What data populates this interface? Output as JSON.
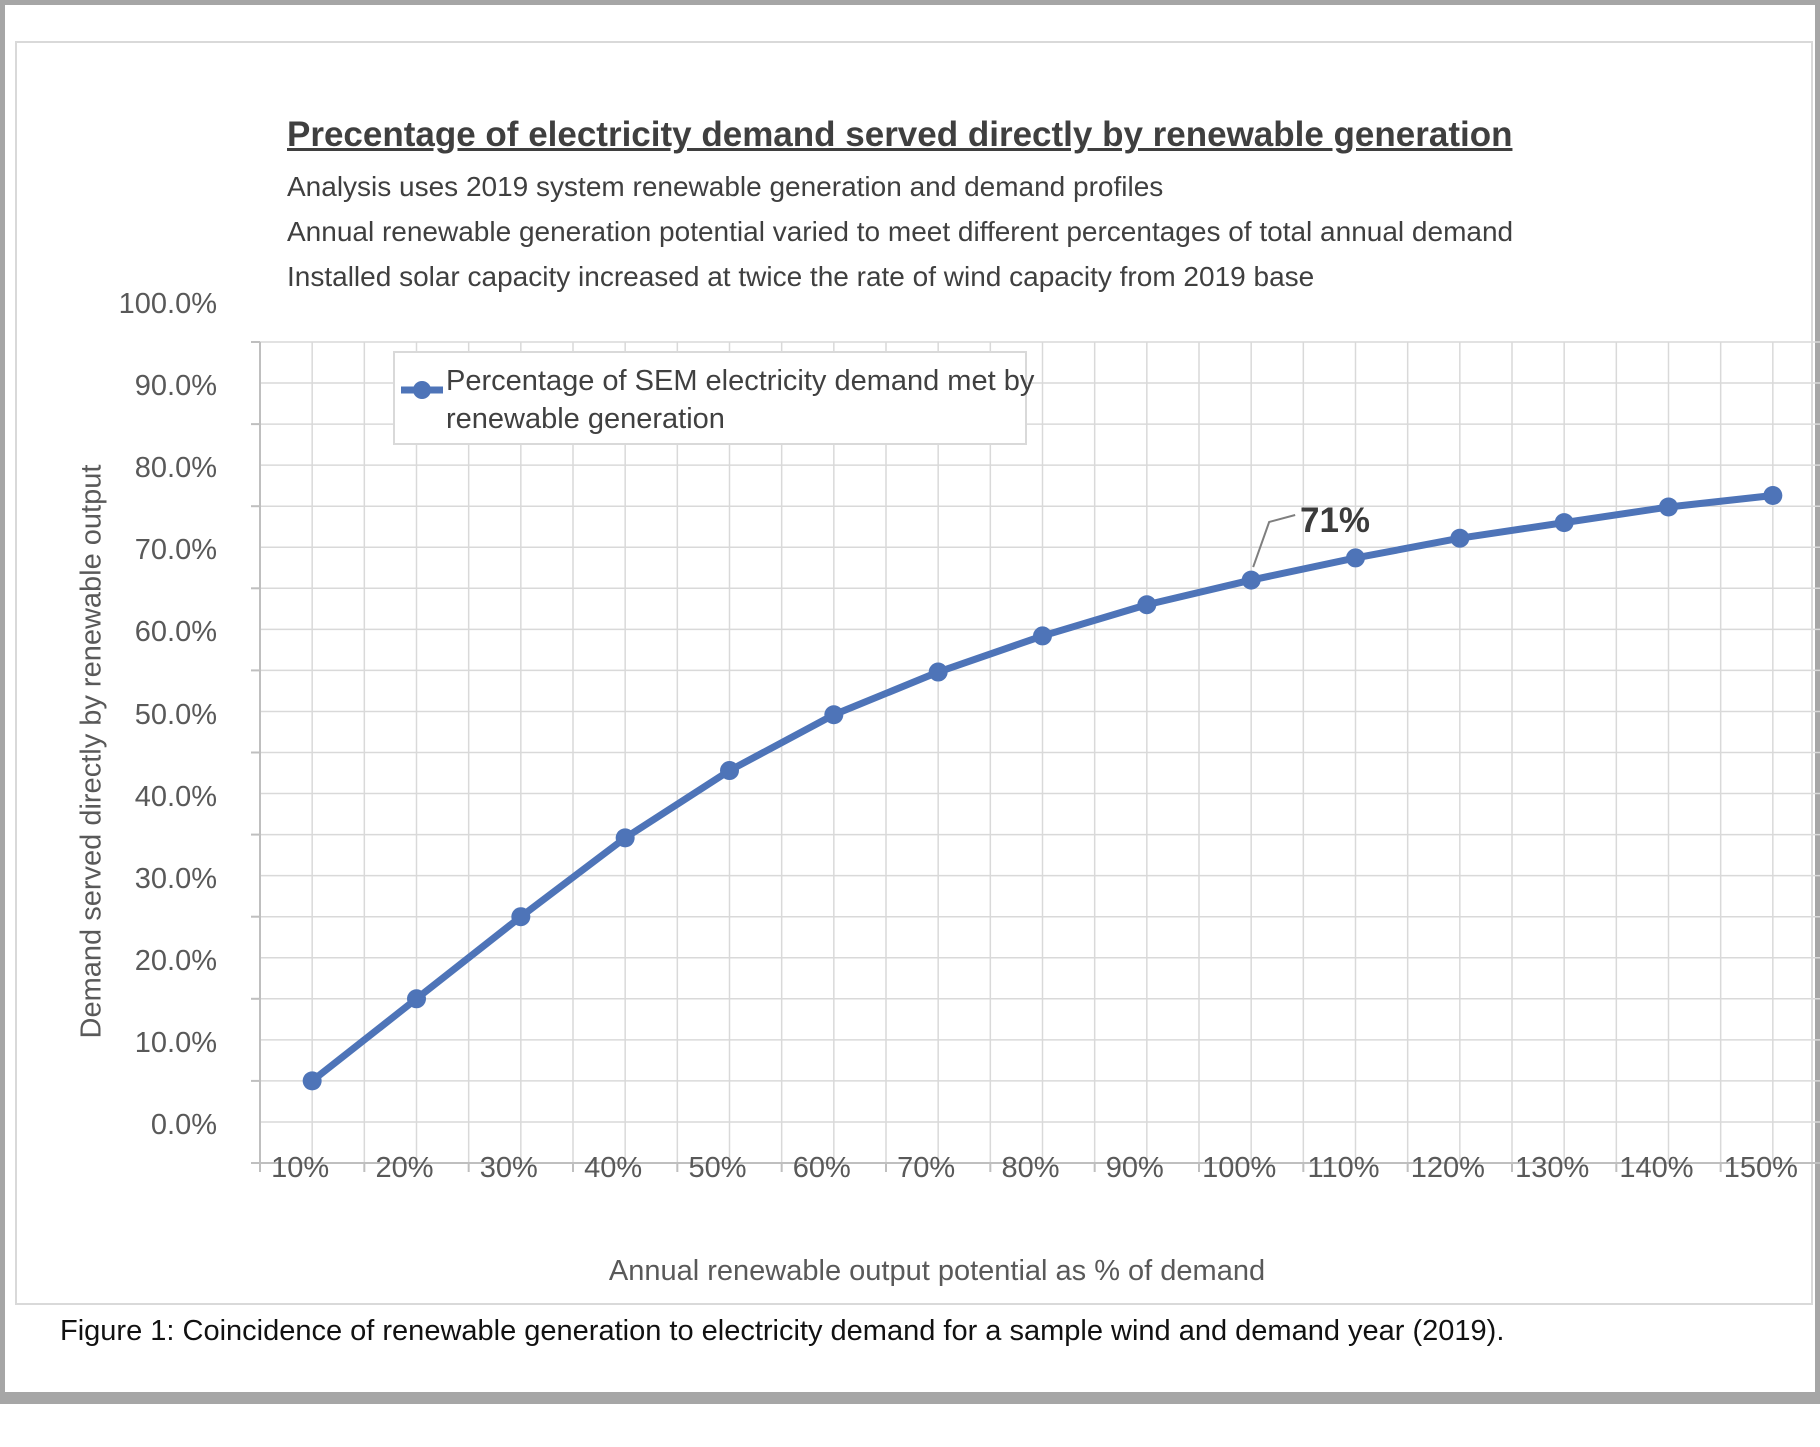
{
  "header": {
    "title": "Precentage of electricity demand served directly by renewable generation",
    "subtitles": [
      "Analysis uses 2019 system renewable generation and demand profiles",
      "Annual renewable generation potential varied to meet different percentages of total annual demand",
      "Installed solar capacity increased at twice the rate of wind capacity from 2019 base"
    ]
  },
  "legend": {
    "line1": "Percentage of SEM electricity demand met by",
    "line2": "renewable generation"
  },
  "axes": {
    "x_title": "Annual renewable output potential as % of demand",
    "y_title": "Demand served directly by renewable output"
  },
  "caption": "Figure 1: Coincidence of renewable generation to electricity demand for a sample wind and demand year (2019).",
  "colors": {
    "line": "#4e74b8",
    "grid": "#d9d9d9",
    "axis": "#bfbfbf",
    "leader": "#7f7f7f",
    "tick_text": "#595959",
    "title_text": "#3f3f3f"
  },
  "chart_data": {
    "type": "line",
    "title": "Precentage of electricity demand served directly by renewable generation",
    "xlabel": "Annual renewable output potential as % of demand",
    "ylabel": "Demand served directly by renewable output",
    "categories": [
      "10%",
      "20%",
      "30%",
      "40%",
      "50%",
      "60%",
      "70%",
      "80%",
      "90%",
      "100%",
      "110%",
      "120%",
      "130%",
      "140%",
      "150%"
    ],
    "series": [
      {
        "name": "Percentage of SEM electricity demand met by renewable generation",
        "values": [
          10.0,
          20.0,
          30.0,
          39.6,
          47.8,
          54.6,
          59.8,
          64.2,
          68.0,
          71.0,
          73.7,
          76.1,
          78.0,
          79.9,
          81.3
        ]
      }
    ],
    "y_ticks": [
      "0.0%",
      "10.0%",
      "20.0%",
      "30.0%",
      "40.0%",
      "50.0%",
      "60.0%",
      "70.0%",
      "80.0%",
      "90.0%",
      "100.0%"
    ],
    "ylim": [
      0,
      100
    ],
    "grid": true,
    "minor_gridlines": "every 5% horizontal, every half-category vertical",
    "legend_position": "top-left-inside",
    "annotation": {
      "text": "71%",
      "category": "100%",
      "index": 9,
      "value": 71.0
    }
  }
}
